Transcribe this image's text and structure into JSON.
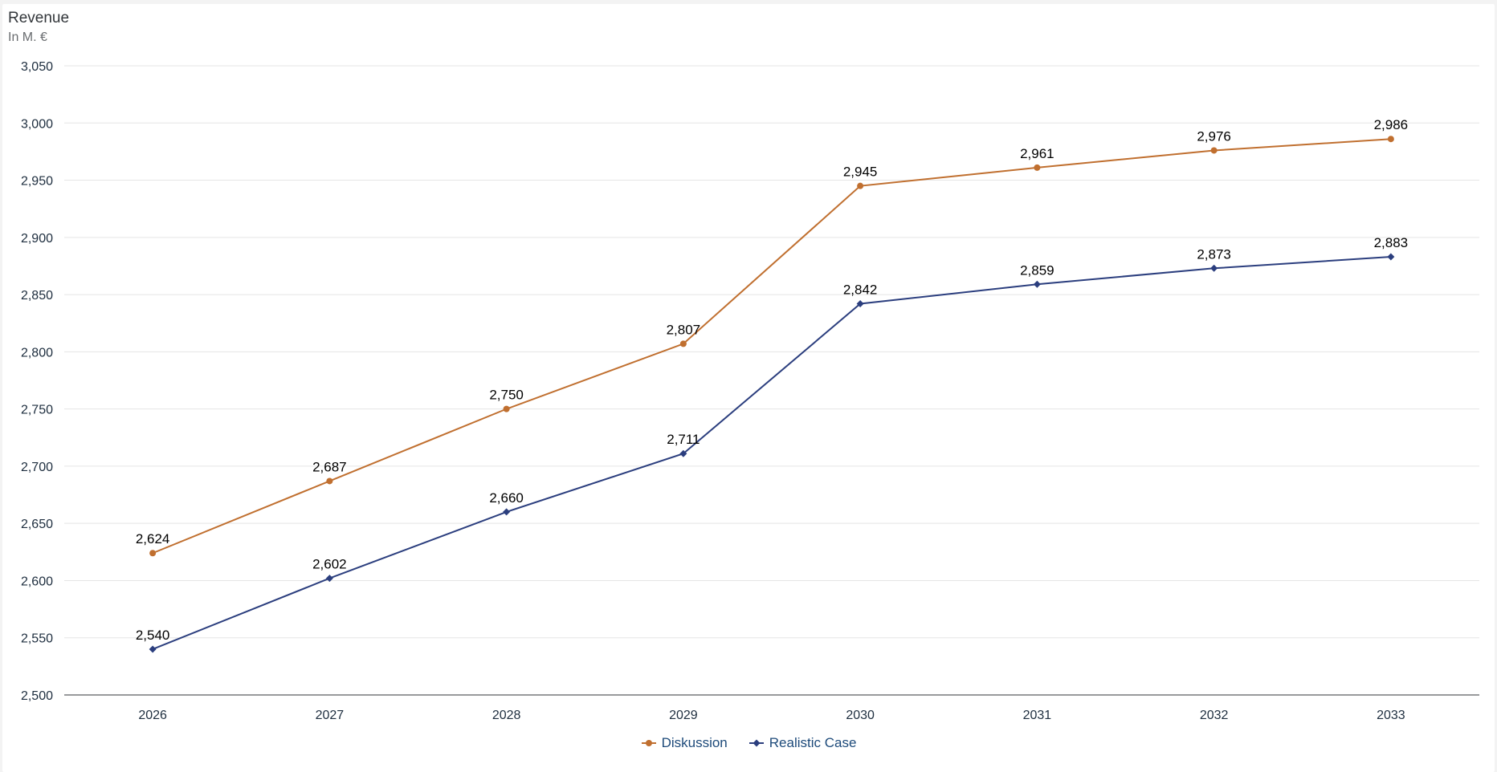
{
  "header": {
    "title": "Revenue",
    "subtitle": "In M. €"
  },
  "chart_data": {
    "type": "line",
    "title": "Revenue",
    "subtitle": "In M. €",
    "xlabel": "",
    "ylabel": "",
    "categories": [
      "2026",
      "2027",
      "2028",
      "2029",
      "2030",
      "2031",
      "2032",
      "2033"
    ],
    "ylim": [
      2500,
      3050
    ],
    "yticks": [
      2500,
      2550,
      2600,
      2650,
      2700,
      2750,
      2800,
      2850,
      2900,
      2950,
      3000,
      3050
    ],
    "grid": true,
    "legend_position": "bottom-center",
    "series": [
      {
        "name": "Diskussion",
        "color": "#c06f2f",
        "marker": "circle",
        "values": [
          2624,
          2687,
          2750,
          2807,
          2945,
          2961,
          2976,
          2986
        ],
        "labels": [
          "2,624",
          "2,687",
          "2,750",
          "2,807",
          "2,945",
          "2,961",
          "2,976",
          "2,986"
        ]
      },
      {
        "name": "Realistic Case",
        "color": "#2b3e7e",
        "marker": "diamond",
        "values": [
          2540,
          2602,
          2660,
          2711,
          2842,
          2859,
          2873,
          2883
        ],
        "labels": [
          "2,540",
          "2,602",
          "2,660",
          "2,711",
          "2,842",
          "2,859",
          "2,873",
          "2,883"
        ]
      }
    ]
  }
}
